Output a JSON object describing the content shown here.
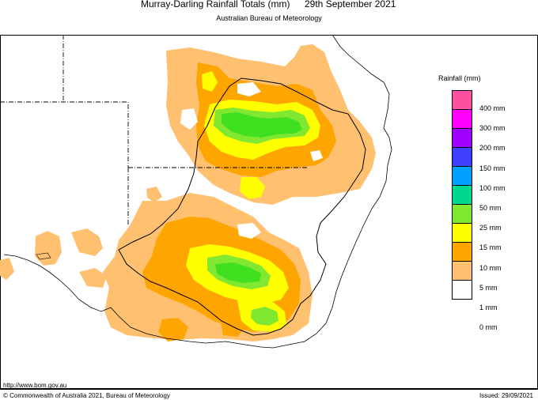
{
  "title": {
    "main": "Murray-Darling Rainfall Totals (mm)",
    "date": "29th September 2021",
    "agency": "Australian Bureau of Meteorology"
  },
  "legend": {
    "title": "Rainfall (mm)",
    "items": [
      {
        "label": "400 mm",
        "color": "#ff4fa0"
      },
      {
        "label": "300 mm",
        "color": "#ff00ff"
      },
      {
        "label": "200 mm",
        "color": "#a000ff"
      },
      {
        "label": "150 mm",
        "color": "#4040ff"
      },
      {
        "label": "100 mm",
        "color": "#00a0ff"
      },
      {
        "label": "50 mm",
        "color": "#00d890"
      },
      {
        "label": "25 mm",
        "color": "#80e830"
      },
      {
        "label": "15 mm",
        "color": "#ffff00"
      },
      {
        "label": "10 mm",
        "color": "#ffa500"
      },
      {
        "label": "5 mm",
        "color": "#ffc070"
      },
      {
        "label": "1 mm",
        "color": "#ffffff"
      },
      {
        "label": "0 mm",
        "color": ""
      }
    ]
  },
  "footer": {
    "url": "http://www.bom.gov.au",
    "copyright": "© Commonwealth of Australia 2021, Bureau of Meteorology",
    "issued": "Issued: 29/09/2021"
  },
  "colors": {
    "c1": "#ffc070",
    "c5": "#ffa500",
    "c10": "#ffff00",
    "c15": "#80e830",
    "c25": "#40e020",
    "border": "#000000"
  }
}
